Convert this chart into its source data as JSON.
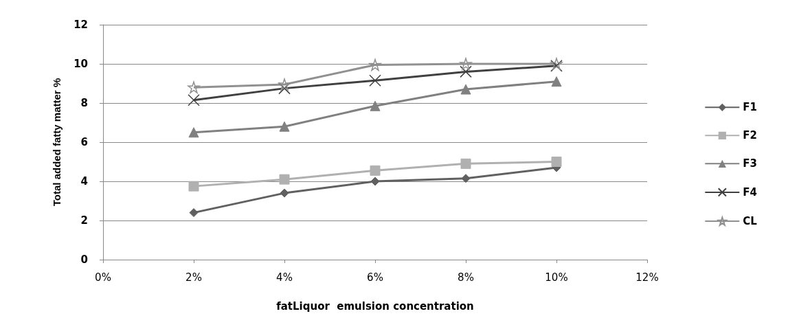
{
  "chart_data": {
    "type": "line",
    "xlabel": "fatLiquor  emulsion concentration",
    "ylabel": "Total added fatty matter %",
    "x": [
      2,
      4,
      6,
      8,
      10
    ],
    "xlim": [
      0,
      12
    ],
    "xticks": [
      {
        "value": 0,
        "label": "0%"
      },
      {
        "value": 2,
        "label": "2%"
      },
      {
        "value": 4,
        "label": "4%"
      },
      {
        "value": 6,
        "label": "6%"
      },
      {
        "value": 8,
        "label": "8%"
      },
      {
        "value": 10,
        "label": "10%"
      },
      {
        "value": 12,
        "label": "12%"
      }
    ],
    "ylim": [
      0,
      12
    ],
    "yticks": [
      0,
      2,
      4,
      6,
      8,
      10,
      12
    ],
    "grid": "y",
    "legend": "right",
    "line_style": "solid",
    "series": [
      {
        "name": "F1",
        "color": "#606060",
        "marker": "diamond",
        "values": [
          2.4,
          3.4,
          4.0,
          4.15,
          4.7
        ]
      },
      {
        "name": "F2",
        "color": "#b0b0b0",
        "marker": "square",
        "values": [
          3.75,
          4.1,
          4.55,
          4.9,
          5.0
        ]
      },
      {
        "name": "F3",
        "color": "#808080",
        "marker": "triangle",
        "values": [
          6.5,
          6.8,
          7.85,
          8.7,
          9.1
        ]
      },
      {
        "name": "F4",
        "color": "#404040",
        "marker": "cross",
        "values": [
          8.15,
          8.75,
          9.15,
          9.6,
          9.9
        ]
      },
      {
        "name": "CL",
        "color": "#909090",
        "marker": "star",
        "values": [
          8.8,
          8.95,
          9.95,
          10.0,
          10.0
        ]
      }
    ]
  }
}
